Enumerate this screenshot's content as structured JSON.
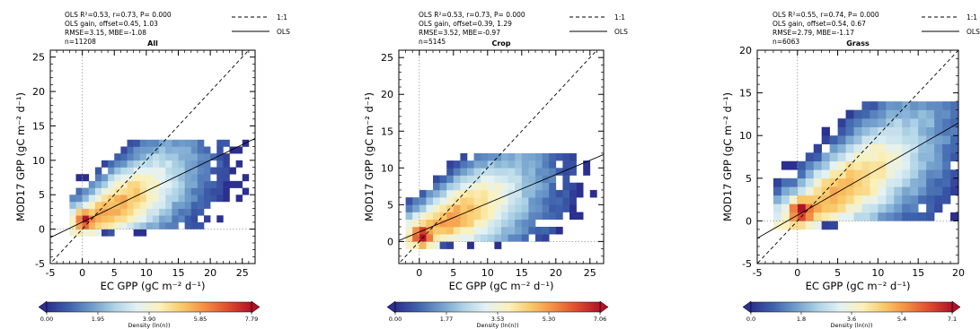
{
  "legend": {
    "one_to_one": "1:1",
    "ols": "OLS"
  },
  "colorbar_label": "Density (ln(n))",
  "colors": {
    "ramp": [
      "#2b2f8f",
      "#3f63ad",
      "#6f9dcb",
      "#aed3e6",
      "#e4f2f4",
      "#fbf1b8",
      "#f9c766",
      "#f38a42",
      "#de4a2d",
      "#b01227"
    ],
    "one_to_one": "#000000",
    "ols": "#000000"
  },
  "chart_data": [
    {
      "type": "heatmap",
      "title": "All",
      "stats": [
        "OLS R²=0.53, r=0.73, P= 0.000",
        "OLS gain, offset=0.45, 1.03",
        "RMSE=3.15, MBE=-1.08",
        "n=11208"
      ],
      "xlabel": "EC GPP (gC m⁻² d⁻¹)",
      "ylabel": "MOD17 GPP (gC m⁻² d⁻¹)",
      "xlim": [
        -5,
        27
      ],
      "ylim": [
        -5,
        26
      ],
      "xticks": [
        -5,
        0,
        5,
        10,
        15,
        20,
        25
      ],
      "yticks": [
        -5,
        0,
        5,
        10,
        15,
        20,
        25
      ],
      "ols": {
        "gain": 0.45,
        "offset": 1.03
      },
      "one_to_one_line": true,
      "colorbar": {
        "min": 0.0,
        "max": 7.79,
        "ticks": [
          "0.00",
          "1.95",
          "3.90",
          "5.85",
          "7.79"
        ]
      }
    },
    {
      "type": "heatmap",
      "title": "Crop",
      "stats": [
        "OLS R²=0.53, r=0.73, P= 0.000",
        "OLS gain, offset=0.39, 1.29",
        "RMSE=3.52, MBE=-0.97",
        "n=5145"
      ],
      "xlabel": "EC GPP (gC m⁻² d⁻¹)",
      "ylabel": "MOD17 GPP (gC m⁻² d⁻¹)",
      "xlim": [
        -3,
        27
      ],
      "ylim": [
        -3,
        26
      ],
      "xticks": [
        0,
        5,
        10,
        15,
        20,
        25
      ],
      "yticks": [
        0,
        5,
        10,
        15,
        20,
        25
      ],
      "ols": {
        "gain": 0.39,
        "offset": 1.29
      },
      "one_to_one_line": true,
      "colorbar": {
        "min": 0.0,
        "max": 7.06,
        "ticks": [
          "0.00",
          "1.77",
          "3.53",
          "5.30",
          "7.06"
        ]
      }
    },
    {
      "type": "heatmap",
      "title": "Grass",
      "stats": [
        "OLS R²=0.55, r=0.74, P= 0.000",
        "OLS gain, offset=0.54, 0.67",
        "RMSE=2.79, MBE=-1.17",
        "n=6063"
      ],
      "xlabel": "EC GPP (gC m⁻² d⁻¹)",
      "ylabel": "MOD17 GPP (gC m⁻² d⁻¹)",
      "xlim": [
        -5,
        20
      ],
      "ylim": [
        -5,
        20
      ],
      "xticks": [
        -5,
        0,
        5,
        10,
        15,
        20
      ],
      "yticks": [
        -5,
        0,
        5,
        10,
        15,
        20
      ],
      "ols": {
        "gain": 0.54,
        "offset": 0.67
      },
      "one_to_one_line": true,
      "colorbar": {
        "min": 0.0,
        "max": 7.1,
        "ticks": [
          "0.0",
          "1.8",
          "3.6",
          "5.4",
          "7.1"
        ]
      }
    }
  ]
}
